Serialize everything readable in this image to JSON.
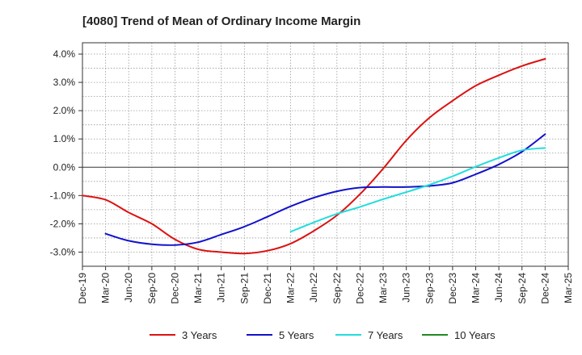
{
  "chart_data": {
    "type": "line",
    "title": "[4080]  Trend of Mean of Ordinary Income Margin",
    "xlabel": "",
    "ylabel": "",
    "x": [
      "Dec-19",
      "Mar-20",
      "Jun-20",
      "Sep-20",
      "Dec-20",
      "Mar-21",
      "Jun-21",
      "Sep-21",
      "Dec-21",
      "Mar-22",
      "Jun-22",
      "Sep-22",
      "Dec-22",
      "Mar-23",
      "Jun-23",
      "Sep-23",
      "Dec-23",
      "Mar-24",
      "Jun-24",
      "Sep-24",
      "Dec-24",
      "Mar-25"
    ],
    "ylim": [
      -3.5,
      4.4
    ],
    "yticks": [
      "4.0%",
      "3.0%",
      "2.0%",
      "1.0%",
      "0.0%",
      "-1.0%",
      "-2.0%",
      "-3.0%"
    ],
    "ytick_values": [
      4,
      3,
      2,
      1,
      0,
      -1,
      -2,
      -3
    ],
    "grid": true,
    "legend_position": "bottom",
    "series": [
      {
        "name": "3 Years",
        "color": "#dd1111",
        "values": [
          -1.0,
          -1.15,
          -1.6,
          -2.0,
          -2.55,
          -2.9,
          -3.0,
          -3.05,
          -2.95,
          -2.7,
          -2.25,
          -1.7,
          -0.95,
          -0.05,
          0.95,
          1.75,
          2.35,
          2.88,
          3.25,
          3.58,
          3.83,
          null
        ]
      },
      {
        "name": "5 Years",
        "color": "#1111cc",
        "values": [
          null,
          -2.35,
          -2.6,
          -2.72,
          -2.75,
          -2.65,
          -2.38,
          -2.1,
          -1.75,
          -1.38,
          -1.08,
          -0.85,
          -0.72,
          -0.7,
          -0.7,
          -0.66,
          -0.55,
          -0.25,
          0.1,
          0.55,
          1.17,
          null
        ]
      },
      {
        "name": "7 Years",
        "color": "#22dddd",
        "values": [
          null,
          null,
          null,
          null,
          null,
          null,
          null,
          null,
          null,
          -2.28,
          -1.95,
          -1.65,
          -1.4,
          -1.13,
          -0.88,
          -0.62,
          -0.32,
          0.02,
          0.33,
          0.6,
          0.68,
          null
        ]
      },
      {
        "name": "10 Years",
        "color": "#228822",
        "values": [
          null,
          null,
          null,
          null,
          null,
          null,
          null,
          null,
          null,
          null,
          null,
          null,
          null,
          null,
          null,
          null,
          null,
          null,
          null,
          null,
          null,
          null
        ]
      }
    ]
  }
}
